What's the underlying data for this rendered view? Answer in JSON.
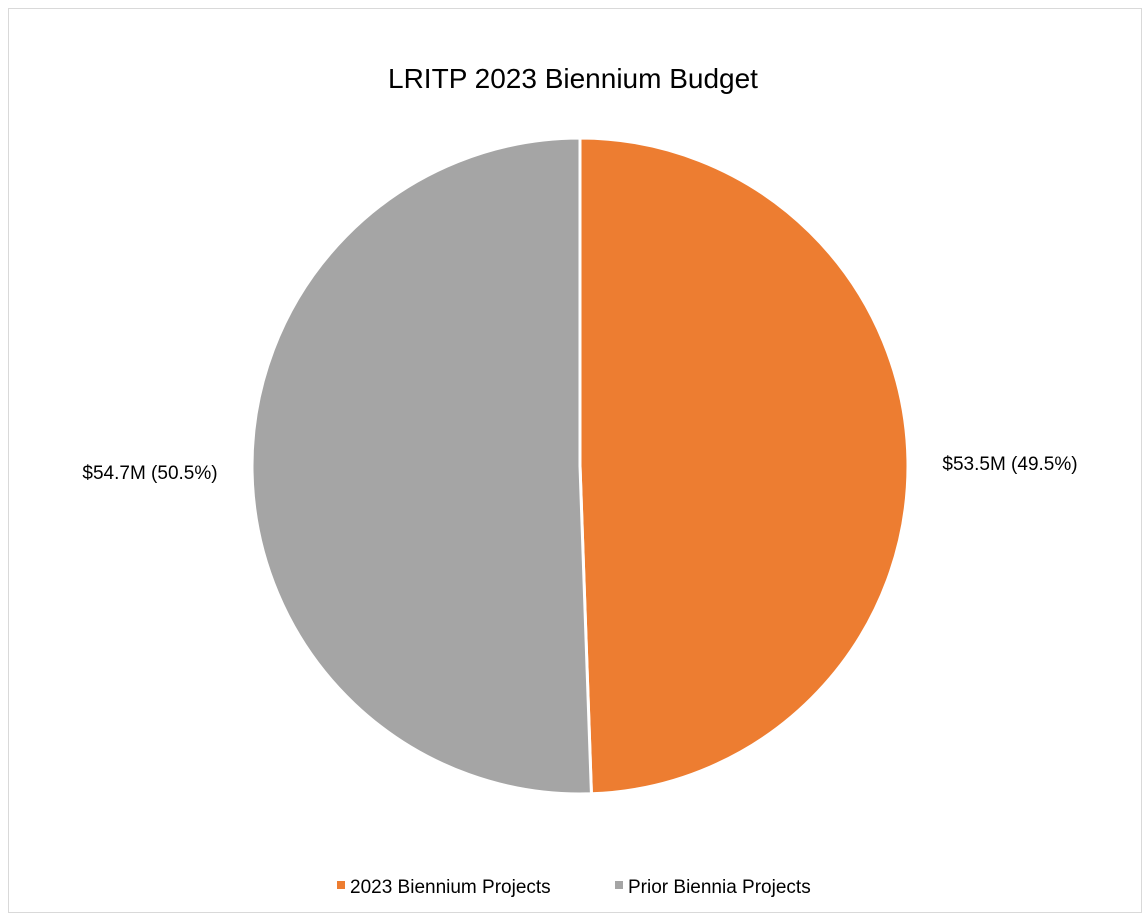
{
  "chart_data": {
    "type": "pie",
    "title": "LRITP 2023 Biennium Budget",
    "categories": [
      "2023 Biennium Projects",
      "Prior Biennia Projects"
    ],
    "values": [
      53.5,
      54.7
    ],
    "unit": "$M",
    "data_labels": [
      "$53.5M (49.5%)",
      "$54.7M (50.5%)"
    ],
    "colors": [
      "#ed7d31",
      "#a5a5a5"
    ],
    "legend": {
      "position": "bottom",
      "entries": [
        "2023 Biennium Projects",
        "Prior Biennia Projects"
      ]
    },
    "start_angle": "12 o'clock",
    "direction": "clockwise"
  }
}
